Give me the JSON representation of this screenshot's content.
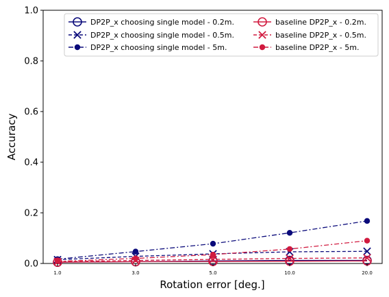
{
  "chart_data": {
    "type": "line",
    "xlabel": "Rotation error [deg.]",
    "ylabel": "Accuracy",
    "x_tick_labels": [
      "1.0",
      "3.0",
      "5.0",
      "10.0",
      "20.0"
    ],
    "ylim": [
      0,
      1.0
    ],
    "y_ticks": [
      0.0,
      0.2,
      0.4,
      0.6,
      0.8,
      1.0
    ],
    "y_tick_labels": [
      "0.0",
      "0.2",
      "0.4",
      "0.6",
      "0.8",
      "1.0"
    ],
    "grid": false,
    "legend_position": "top-right",
    "legend_columns": 2,
    "series": [
      {
        "name": "DP2P_x choosing single model - 0.2m.",
        "color": "#0a0a7a",
        "marker": "circle-open",
        "line": "solid",
        "values": [
          0.005,
          0.007,
          0.01,
          0.012,
          0.012
        ]
      },
      {
        "name": "DP2P_x choosing single model - 0.5m.",
        "color": "#0a0a7a",
        "marker": "x",
        "line": "dashed",
        "values": [
          0.015,
          0.028,
          0.038,
          0.046,
          0.048
        ]
      },
      {
        "name": "DP2P_x choosing single model - 5m.",
        "color": "#0a0a7a",
        "marker": "dot",
        "line": "dashdot",
        "values": [
          0.017,
          0.047,
          0.078,
          0.121,
          0.168
        ]
      },
      {
        "name": "baseline DP2P_x - 0.2m.",
        "color": "#d11a3f",
        "marker": "circle-open",
        "line": "solid",
        "values": [
          0.005,
          0.007,
          0.008,
          0.009,
          0.01
        ]
      },
      {
        "name": "baseline DP2P_x - 0.5m.",
        "color": "#d11a3f",
        "marker": "x",
        "line": "dashed",
        "values": [
          0.007,
          0.012,
          0.016,
          0.02,
          0.022
        ]
      },
      {
        "name": "baseline DP2P_x - 5m.",
        "color": "#d11a3f",
        "marker": "dot",
        "line": "dashdot",
        "values": [
          0.008,
          0.02,
          0.035,
          0.057,
          0.09
        ]
      }
    ]
  }
}
